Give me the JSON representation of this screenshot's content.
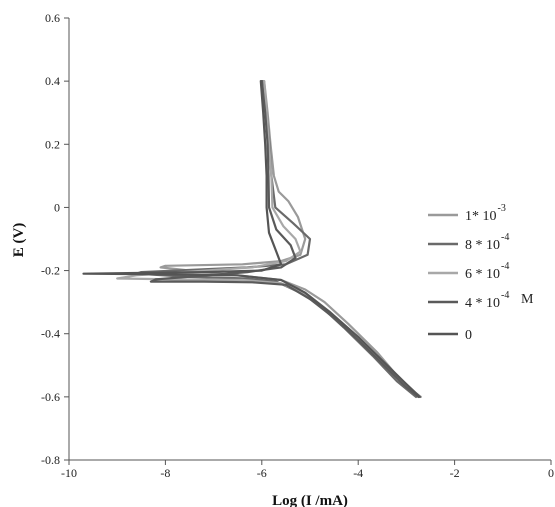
{
  "chart_data": {
    "type": "line",
    "title": "",
    "xlabel": "Log (I /mA)",
    "ylabel": "E (V)",
    "xlim": [
      -10,
      0
    ],
    "ylim": [
      -0.8,
      0.6
    ],
    "x_ticks": [
      "-10",
      "-8",
      "-6",
      "-4",
      "-2",
      "0"
    ],
    "y_ticks": [
      "0.6",
      "0.4",
      "0.2",
      "0",
      "-0.2",
      "-0.4",
      "-0.6",
      "-0.8"
    ],
    "grid": false,
    "legend_position": "right",
    "legend_unit": "M",
    "series": [
      {
        "name": "1* 10^-3",
        "label_base": "1* 10",
        "label_exp": "-3",
        "color": "#9a9a9a",
        "points": [
          [
            -5.95,
            0.4
          ],
          [
            -5.88,
            0.3
          ],
          [
            -5.82,
            0.2
          ],
          [
            -5.75,
            0.1
          ],
          [
            -5.65,
            0.05
          ],
          [
            -5.45,
            0.02
          ],
          [
            -5.25,
            -0.03
          ],
          [
            -5.1,
            -0.1
          ],
          [
            -5.2,
            -0.15
          ],
          [
            -5.6,
            -0.17
          ],
          [
            -6.4,
            -0.18
          ],
          [
            -8.0,
            -0.185
          ],
          [
            -8.1,
            -0.19
          ],
          [
            -7.2,
            -0.205
          ],
          [
            -6.2,
            -0.22
          ],
          [
            -5.6,
            -0.23
          ],
          [
            -5.1,
            -0.26
          ],
          [
            -4.7,
            -0.3
          ],
          [
            -4.2,
            -0.37
          ],
          [
            -3.6,
            -0.46
          ],
          [
            -3.1,
            -0.55
          ],
          [
            -2.75,
            -0.6
          ]
        ]
      },
      {
        "name": "8 * 10^-4",
        "label_base": "8 * 10",
        "label_exp": "-4",
        "color": "#6a6a6a",
        "points": [
          [
            -5.98,
            0.4
          ],
          [
            -5.9,
            0.3
          ],
          [
            -5.84,
            0.2
          ],
          [
            -5.8,
            0.1
          ],
          [
            -5.72,
            0.0
          ],
          [
            -5.35,
            -0.05
          ],
          [
            -5.0,
            -0.1
          ],
          [
            -5.05,
            -0.15
          ],
          [
            -5.5,
            -0.18
          ],
          [
            -6.3,
            -0.19
          ],
          [
            -8.5,
            -0.205
          ],
          [
            -8.6,
            -0.21
          ],
          [
            -7.5,
            -0.22
          ],
          [
            -6.3,
            -0.225
          ],
          [
            -5.7,
            -0.235
          ],
          [
            -5.2,
            -0.27
          ],
          [
            -4.8,
            -0.31
          ],
          [
            -4.3,
            -0.38
          ],
          [
            -3.7,
            -0.47
          ],
          [
            -3.2,
            -0.55
          ],
          [
            -2.8,
            -0.6
          ]
        ]
      },
      {
        "name": "6 * 10^-4",
        "label_base": "6 * 10",
        "label_exp": "-4",
        "color": "#a8a8a8",
        "points": [
          [
            -5.95,
            0.4
          ],
          [
            -5.9,
            0.3
          ],
          [
            -5.85,
            0.2
          ],
          [
            -5.8,
            0.1
          ],
          [
            -5.78,
            0.0
          ],
          [
            -5.55,
            -0.06
          ],
          [
            -5.3,
            -0.1
          ],
          [
            -5.2,
            -0.14
          ],
          [
            -5.5,
            -0.17
          ],
          [
            -6.2,
            -0.19
          ],
          [
            -8.6,
            -0.215
          ],
          [
            -9.0,
            -0.225
          ],
          [
            -7.8,
            -0.228
          ],
          [
            -6.4,
            -0.23
          ],
          [
            -5.6,
            -0.24
          ],
          [
            -5.05,
            -0.28
          ],
          [
            -4.6,
            -0.33
          ],
          [
            -4.1,
            -0.4
          ],
          [
            -3.5,
            -0.49
          ],
          [
            -3.05,
            -0.56
          ],
          [
            -2.7,
            -0.6
          ]
        ]
      },
      {
        "name": "4 * 10^-4",
        "label_base": "4 * 10",
        "label_exp": "-4",
        "color": "#5a5a5a",
        "points": [
          [
            -6.0,
            0.4
          ],
          [
            -5.93,
            0.3
          ],
          [
            -5.88,
            0.2
          ],
          [
            -5.86,
            0.1
          ],
          [
            -5.85,
            0.0
          ],
          [
            -5.7,
            -0.07
          ],
          [
            -5.4,
            -0.12
          ],
          [
            -5.3,
            -0.16
          ],
          [
            -5.6,
            -0.19
          ],
          [
            -6.3,
            -0.205
          ],
          [
            -8.2,
            -0.228
          ],
          [
            -8.3,
            -0.235
          ],
          [
            -7.2,
            -0.235
          ],
          [
            -6.2,
            -0.237
          ],
          [
            -5.5,
            -0.245
          ],
          [
            -5.0,
            -0.29
          ],
          [
            -4.5,
            -0.35
          ],
          [
            -4.0,
            -0.42
          ],
          [
            -3.4,
            -0.51
          ],
          [
            -3.0,
            -0.57
          ],
          [
            -2.75,
            -0.6
          ]
        ]
      },
      {
        "name": "0",
        "label_base": "0",
        "label_exp": "",
        "color": "#555555",
        "points": [
          [
            -6.02,
            0.4
          ],
          [
            -5.97,
            0.3
          ],
          [
            -5.93,
            0.2
          ],
          [
            -5.9,
            0.1
          ],
          [
            -5.9,
            0.0
          ],
          [
            -5.85,
            -0.08
          ],
          [
            -5.7,
            -0.14
          ],
          [
            -5.6,
            -0.18
          ],
          [
            -6.0,
            -0.2
          ],
          [
            -7.2,
            -0.205
          ],
          [
            -9.7,
            -0.21
          ],
          [
            -8.0,
            -0.212
          ],
          [
            -6.5,
            -0.215
          ],
          [
            -5.6,
            -0.23
          ],
          [
            -5.1,
            -0.27
          ],
          [
            -4.6,
            -0.33
          ],
          [
            -4.0,
            -0.41
          ],
          [
            -3.4,
            -0.5
          ],
          [
            -3.0,
            -0.56
          ],
          [
            -2.72,
            -0.6
          ]
        ]
      }
    ]
  }
}
